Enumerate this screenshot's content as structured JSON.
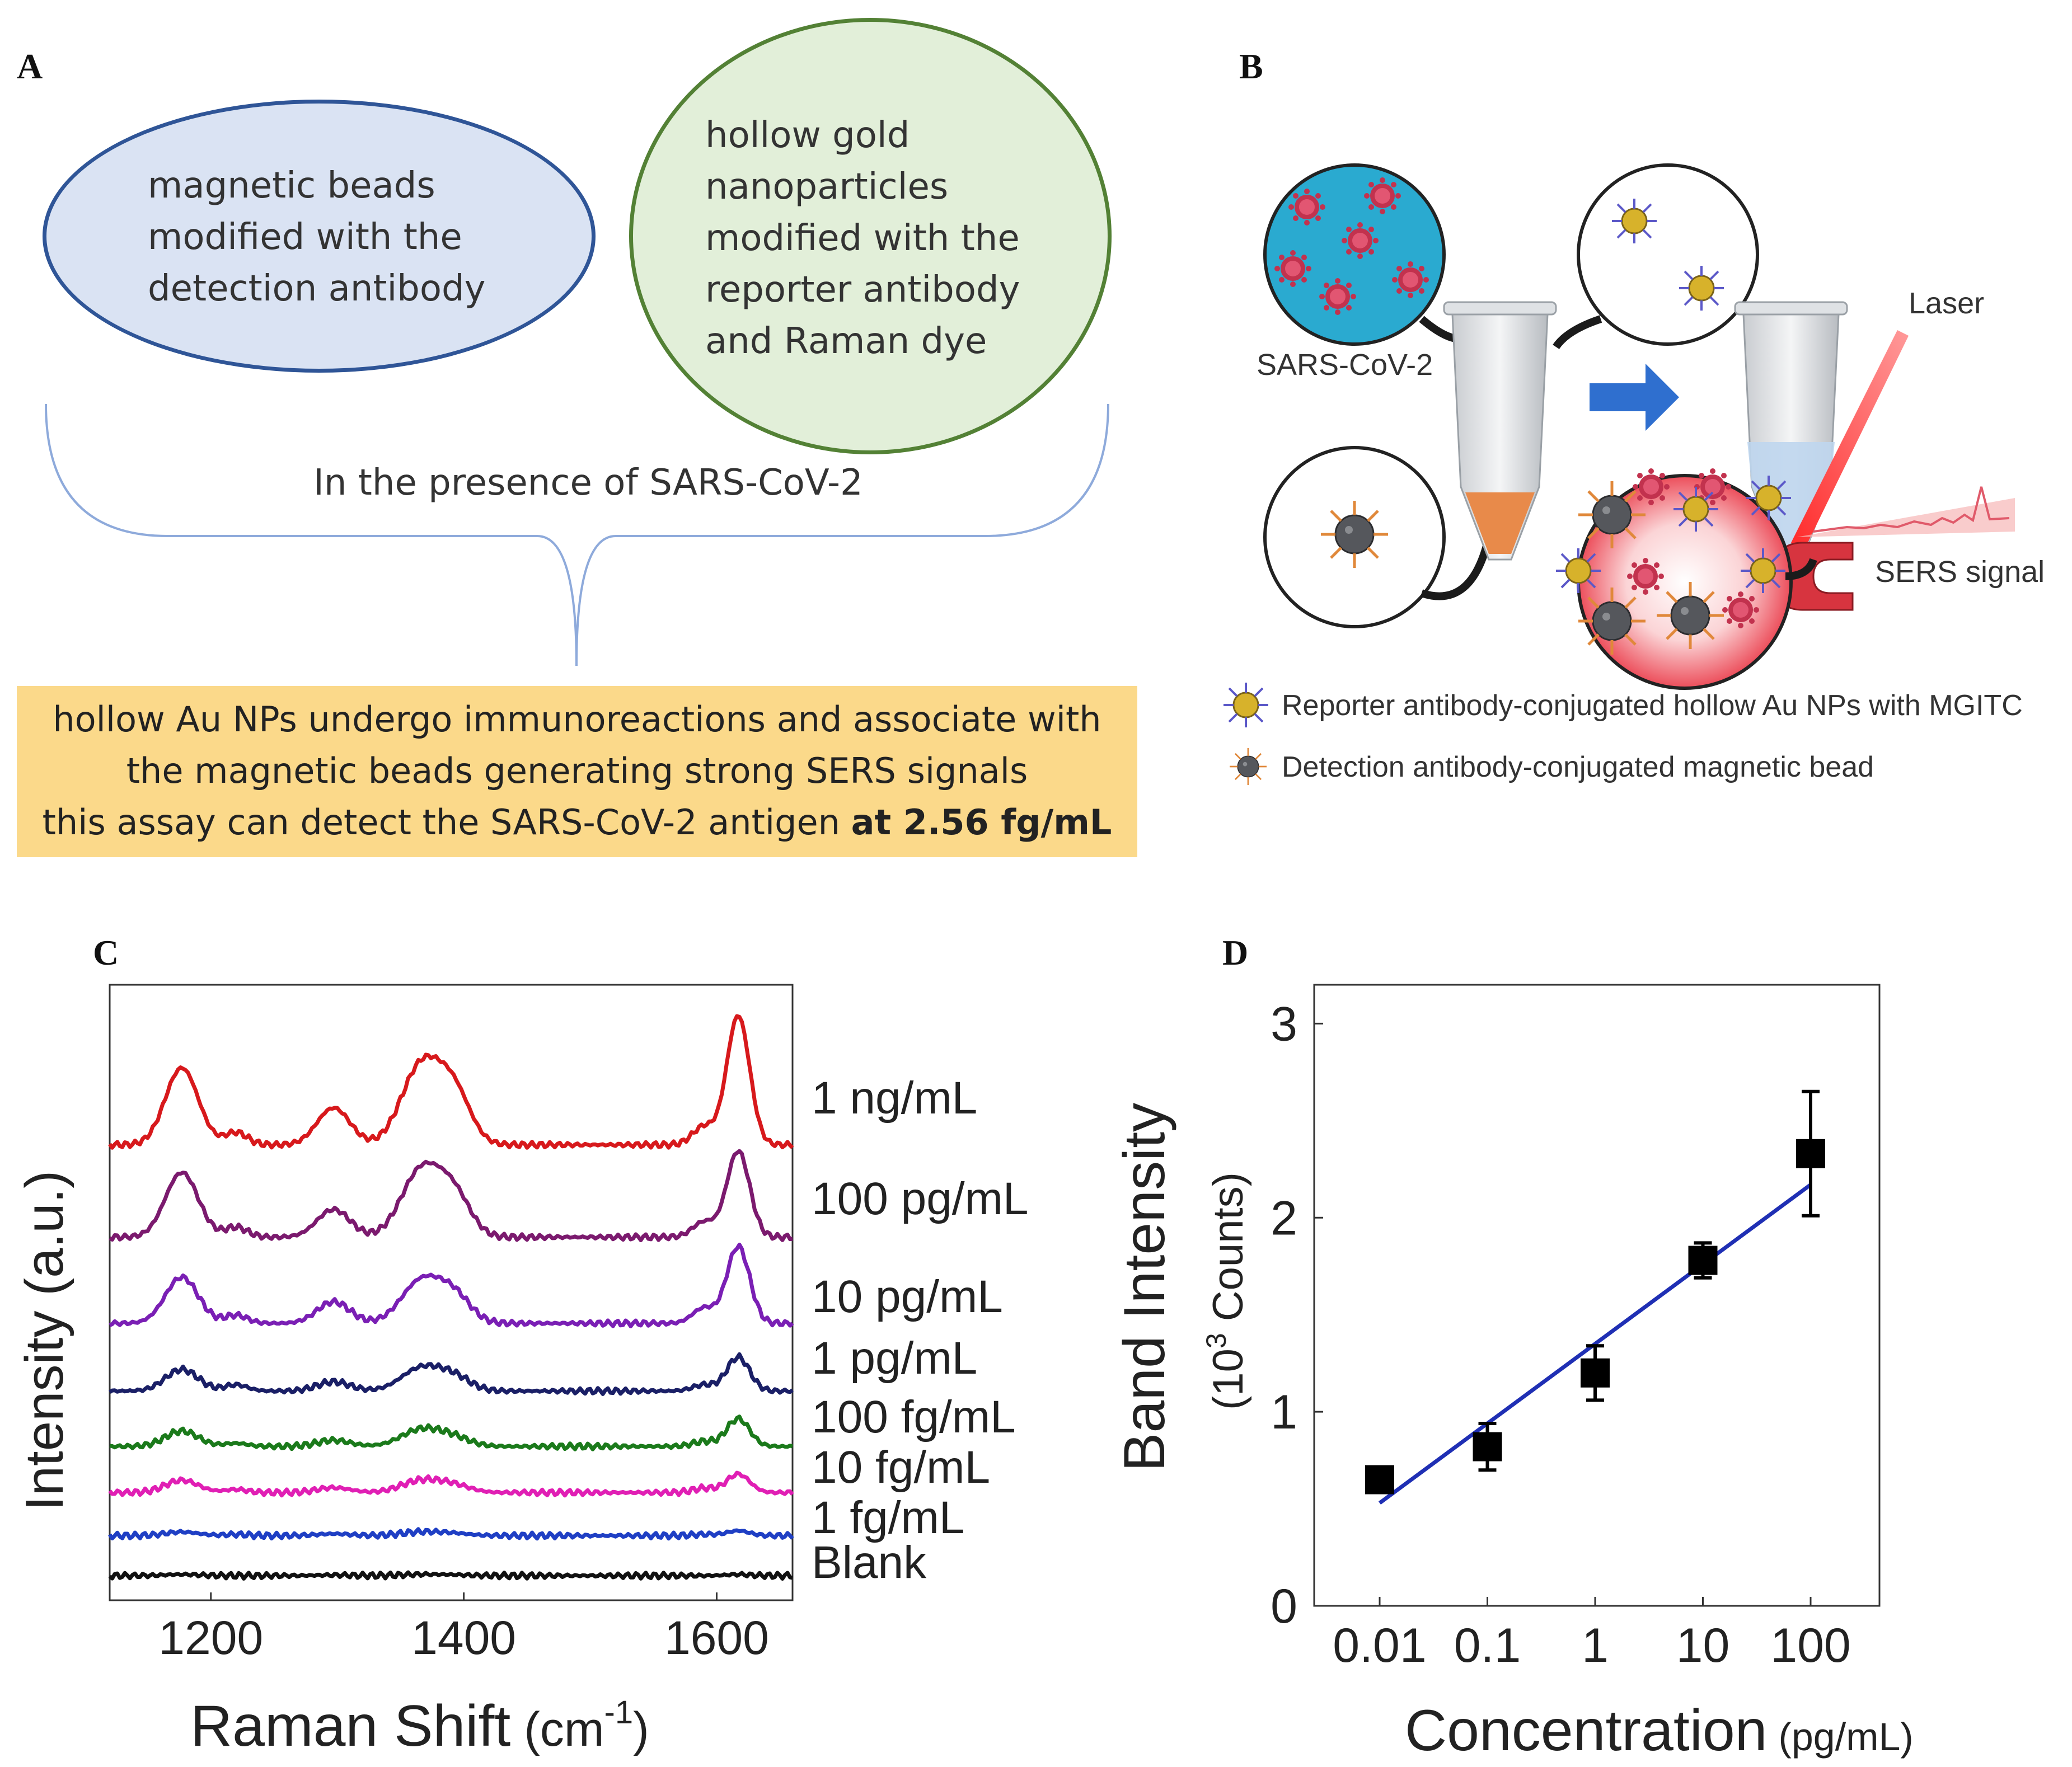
{
  "panels": {
    "a": "A",
    "b": "B",
    "c": "C",
    "d": "D"
  },
  "panel_a": {
    "ellipse_left_lines": [
      "magnetic beads",
      "modified with the",
      "detection antibody"
    ],
    "ellipse_right_lines": [
      "hollow gold",
      "nanoparticles",
      "modified with the",
      "reporter antibody",
      "and Raman dye"
    ],
    "presence_text": "In the presence of SARS-CoV-2",
    "summary_line1": "hollow Au NPs undergo immunoreactions and associate with",
    "summary_line2": "the magnetic beads generating strong SERS signals",
    "summary_line3_prefix": "this assay can detect the SARS-CoV-2 antigen ",
    "summary_line3_bold": "at 2.56 fg/mL",
    "colors": {
      "left_fill": "#dae3f3",
      "left_stroke": "#2f5597",
      "right_fill": "#e2efd9",
      "right_stroke": "#538135",
      "box_fill": "#fbd98a"
    }
  },
  "panel_b": {
    "virus_label": "SARS-CoV-2",
    "laser_label": "Laser",
    "signal_label": "SERS signal",
    "legend": [
      {
        "icon": "gold-nanoparticle-icon",
        "label": "Reporter antibody-conjugated hollow Au NPs with MGITC"
      },
      {
        "icon": "magnetic-bead-icon",
        "label": "Detection antibody-conjugated magnetic bead"
      }
    ]
  },
  "chart_data": [
    {
      "panel": "C",
      "type": "line",
      "xlabel": "Raman Shift",
      "xlabel_unit": "(cm",
      "xlabel_sup": "-1",
      "xlabel_close": ")",
      "ylabel": "Intensity (a.u.)",
      "xlim": [
        1120,
        1660
      ],
      "x_ticks": [
        1200,
        1400,
        1600
      ],
      "y_ticks_shown": false,
      "peaks_cm": [
        1177,
        1220,
        1297,
        1367,
        1393,
        1590,
        1617
      ],
      "peak_widths_cm": [
        13,
        9,
        13,
        16,
        13,
        9,
        9
      ],
      "series": [
        {
          "name": "1 ng/mL",
          "color": "#d7191c",
          "offset": 7.0,
          "peaks": [
            1.25,
            0.2,
            0.6,
            1.3,
            0.75,
            0.3,
            2.1
          ]
        },
        {
          "name": "100 pg/mL",
          "color": "#7b1a6e",
          "offset": 5.5,
          "peaks": [
            1.05,
            0.16,
            0.45,
            1.1,
            0.6,
            0.25,
            1.4
          ]
        },
        {
          "name": "10 pg/mL",
          "color": "#7a1fb4",
          "offset": 4.1,
          "peaks": [
            0.75,
            0.13,
            0.35,
            0.7,
            0.4,
            0.25,
            1.25
          ]
        },
        {
          "name": "1 pg/mL",
          "color": "#1a1f66",
          "offset": 3.0,
          "peaks": [
            0.35,
            0.1,
            0.15,
            0.38,
            0.2,
            0.1,
            0.55
          ]
        },
        {
          "name": "100 fg/mL",
          "color": "#1b7a1b",
          "offset": 2.1,
          "peaks": [
            0.25,
            0.05,
            0.1,
            0.28,
            0.12,
            0.08,
            0.45
          ]
        },
        {
          "name": "10 fg/mL",
          "color": "#e01fb4",
          "offset": 1.35,
          "peaks": [
            0.2,
            0.05,
            0.08,
            0.2,
            0.1,
            0.07,
            0.3
          ]
        },
        {
          "name": "1 fg/mL",
          "color": "#1f3fc4",
          "offset": 0.65,
          "peaks": [
            0.06,
            0.02,
            0.03,
            0.06,
            0.03,
            0.02,
            0.08
          ]
        },
        {
          "name": "Blank",
          "color": "#111111",
          "offset": 0.0,
          "peaks": [
            0.02,
            0.0,
            0.01,
            0.02,
            0.01,
            0.0,
            0.02
          ]
        }
      ]
    },
    {
      "panel": "D",
      "type": "scatter",
      "xlabel": "Concentration",
      "xlabel_unit": "(pg/mL)",
      "ylabel": "Band Intensity",
      "ylabel_unit_prefix": "(10",
      "ylabel_unit_sup": "3",
      "ylabel_unit_suffix": " Counts)",
      "x_scale": "log",
      "categories": [
        "0.01",
        "0.1",
        "1",
        "10",
        "100"
      ],
      "x": [
        0.01,
        0.1,
        1,
        10,
        100
      ],
      "y": [
        0.65,
        0.82,
        1.2,
        1.78,
        2.33
      ],
      "yerr": [
        0.06,
        0.12,
        0.14,
        0.09,
        0.32
      ],
      "ylim": [
        0,
        3.2
      ],
      "y_ticks": [
        0,
        1,
        2,
        3
      ],
      "fit": {
        "x": [
          0.01,
          100
        ],
        "y": [
          0.53,
          2.17
        ],
        "color": "#1f2fb4"
      }
    }
  ]
}
